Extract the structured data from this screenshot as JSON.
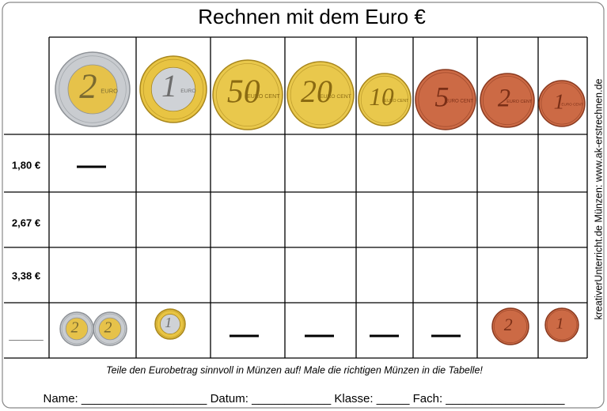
{
  "title": "Rechnen mit dem Euro €",
  "coins": [
    {
      "value": "2",
      "unit": "EURO"
    },
    {
      "value": "1",
      "unit": "EURO"
    },
    {
      "value": "50",
      "unit": "EURO CENT"
    },
    {
      "value": "20",
      "unit": "EURO CENT"
    },
    {
      "value": "10",
      "unit": "EURO CENT"
    },
    {
      "value": "5",
      "unit": "EURO CENT"
    },
    {
      "value": "2",
      "unit": "EURO CENT"
    },
    {
      "value": "1",
      "unit": "EURO CENT"
    }
  ],
  "rows": [
    {
      "label": "1,80 €"
    },
    {
      "label": "2,67 €"
    },
    {
      "label": "3,38 €"
    },
    {
      "label": "______"
    }
  ],
  "example_coins": [
    {
      "value": "2"
    },
    {
      "value": "2"
    },
    {
      "value": "1"
    },
    {
      "value": "2"
    },
    {
      "value": "1"
    }
  ],
  "instruction": "Teile den Eurobetrag sinnvoll in Münzen auf! Male die richtigen Münzen in die Tabelle!",
  "form": "Name: ___________________ Datum: ____________ Klasse: _____ Fach: __________________",
  "side_note": "kreativerUnterricht.de Münzen: www.ak-erstrechnen.de"
}
